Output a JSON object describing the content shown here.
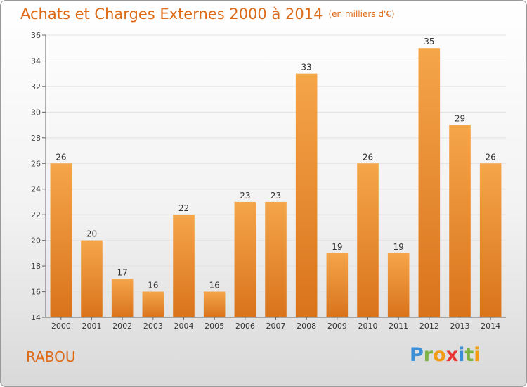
{
  "chart_data": {
    "type": "bar",
    "title": "Achats et Charges Externes 2000 à 2014",
    "subtitle": "(en milliers d'€)",
    "categories": [
      "2000",
      "2001",
      "2002",
      "2003",
      "2004",
      "2005",
      "2006",
      "2007",
      "2008",
      "2009",
      "2010",
      "2011",
      "2012",
      "2013",
      "2014"
    ],
    "values": [
      26,
      20,
      17,
      16,
      22,
      16,
      23,
      23,
      33,
      19,
      26,
      19,
      35,
      29,
      26
    ],
    "ylim": [
      14,
      36
    ],
    "yticks": [
      14,
      16,
      18,
      20,
      22,
      24,
      26,
      28,
      30,
      32,
      34,
      36
    ],
    "grid": true,
    "bar_color_top": "#f5a54a",
    "bar_color_bottom": "#d9731b"
  },
  "footer": {
    "commune": "RABOU",
    "logo_letters": [
      {
        "ch": "P",
        "color": "#3a8fd6"
      },
      {
        "ch": "r",
        "color": "#7cb342"
      },
      {
        "ch": "o",
        "color": "#f39c12"
      },
      {
        "ch": "x",
        "color": "#e53935"
      },
      {
        "ch": "i",
        "color": "#3a8fd6"
      },
      {
        "ch": "t",
        "color": "#7cb342"
      },
      {
        "ch": "i",
        "color": "#f39c12"
      }
    ]
  }
}
